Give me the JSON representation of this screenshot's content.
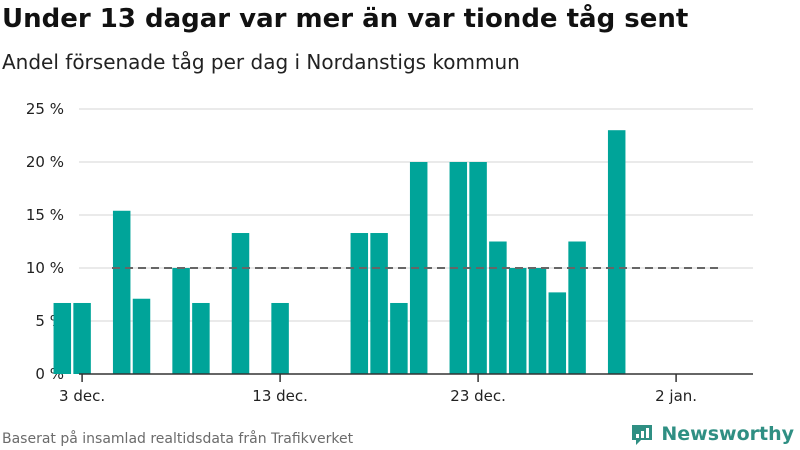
{
  "title": "Under 13 dagar var mer än var tionde tåg sent",
  "subtitle": "Andel försenade tåg per dag i Nordanstigs kommun",
  "footer": {
    "source": "Baserat på insamlad realtidsdata från Trafikverket",
    "brand": "Newsworthy",
    "brand_icon": "newsworthy-logo-icon"
  },
  "colors": {
    "bar": "#00a499",
    "threshold": "#666666",
    "grid": "#dddddd",
    "axis": "#333333",
    "brand": "#2f8f83"
  },
  "chart_data": {
    "type": "bar",
    "title": "Under 13 dagar var mer än var tionde tåg sent",
    "subtitle": "Andel försenade tåg per dag i Nordanstigs kommun",
    "xlabel": "",
    "ylabel": "",
    "ylim": [
      0,
      25
    ],
    "y_ticks": [
      0,
      5,
      10,
      15,
      20,
      25
    ],
    "y_tick_labels": [
      "0 %",
      "5 %",
      "10 %",
      "15 %",
      "20 %",
      "25 %"
    ],
    "x_tick_labels": [
      {
        "label": "3 dec.",
        "day_index": 2
      },
      {
        "label": "13 dec.",
        "day_index": 12
      },
      {
        "label": "23 dec.",
        "day_index": 22
      },
      {
        "label": "2 jan.",
        "day_index": 32
      }
    ],
    "grid": true,
    "reference_line": {
      "value": 10,
      "style": "dashed"
    },
    "categories": [
      "1 dec.",
      "2 dec.",
      "3 dec.",
      "4 dec.",
      "5 dec.",
      "6 dec.",
      "7 dec.",
      "8 dec.",
      "9 dec.",
      "10 dec.",
      "11 dec.",
      "12 dec.",
      "13 dec.",
      "14 dec.",
      "15 dec.",
      "16 dec.",
      "17 dec.",
      "18 dec.",
      "19 dec.",
      "20 dec.",
      "21 dec.",
      "22 dec.",
      "23 dec.",
      "24 dec.",
      "25 dec.",
      "26 dec.",
      "27 dec.",
      "28 dec.",
      "29 dec.",
      "30 dec.",
      "31 dec."
    ],
    "values": [
      0,
      6.7,
      6.7,
      0,
      15.4,
      7.1,
      0,
      10,
      6.7,
      0,
      13.3,
      0,
      6.7,
      0,
      0,
      0,
      13.3,
      13.3,
      6.7,
      20,
      0,
      20,
      20,
      12.5,
      10,
      10,
      7.7,
      12.5,
      0,
      23,
      0
    ]
  }
}
